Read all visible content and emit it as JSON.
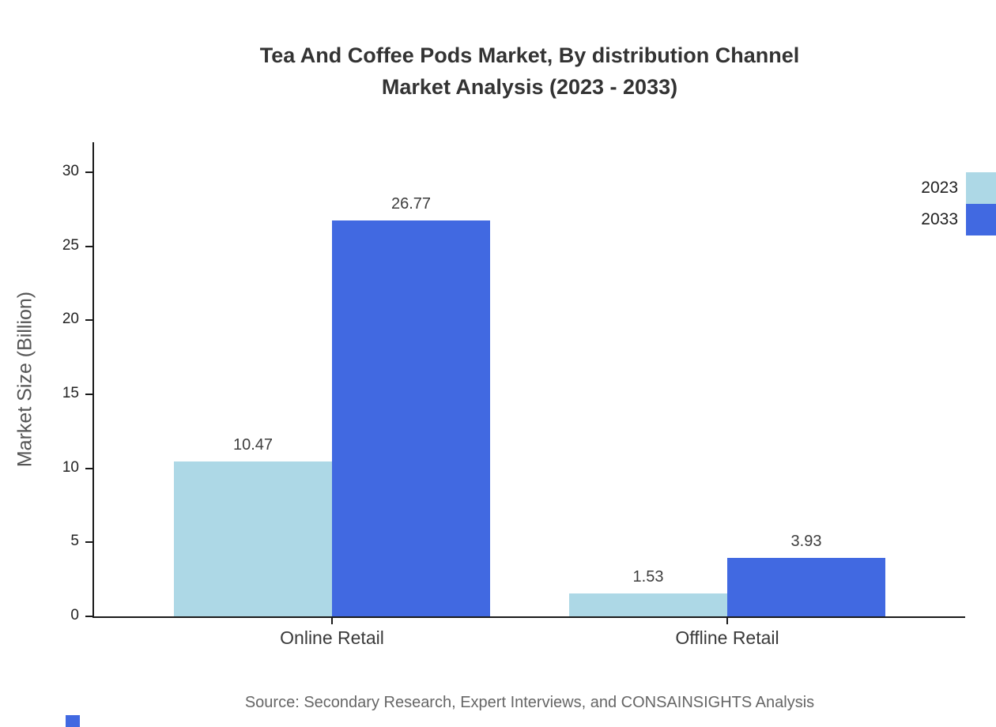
{
  "title": {
    "line1": "Tea And Coffee Pods Market, By distribution Channel",
    "line2": "Market Analysis (2023 - 2033)"
  },
  "ylabel": "Market Size (Billion)",
  "source": "Source: Secondary Research, Expert Interviews, and CONSAINSIGHTS Analysis",
  "colors": {
    "series_2023": "#ADD8E6",
    "series_2033": "#4169E1",
    "axis": "#1a1a1a"
  },
  "chart_data": {
    "type": "bar",
    "title": "Tea And Coffee Pods Market, By distribution Channel Market Analysis (2023 - 2033)",
    "categories": [
      "Online Retail",
      "Offline Retail"
    ],
    "series": [
      {
        "name": "2023",
        "color": "#ADD8E6",
        "values": [
          10.47,
          1.53
        ]
      },
      {
        "name": "2033",
        "color": "#4169E1",
        "values": [
          26.77,
          3.93
        ]
      }
    ],
    "xlabel": "",
    "ylabel": "Market Size (Billion)",
    "ylim": [
      0,
      32
    ],
    "yticks": [
      0,
      5,
      10,
      15,
      20,
      25,
      30
    ],
    "grid": false,
    "legend_position": "top-right"
  }
}
